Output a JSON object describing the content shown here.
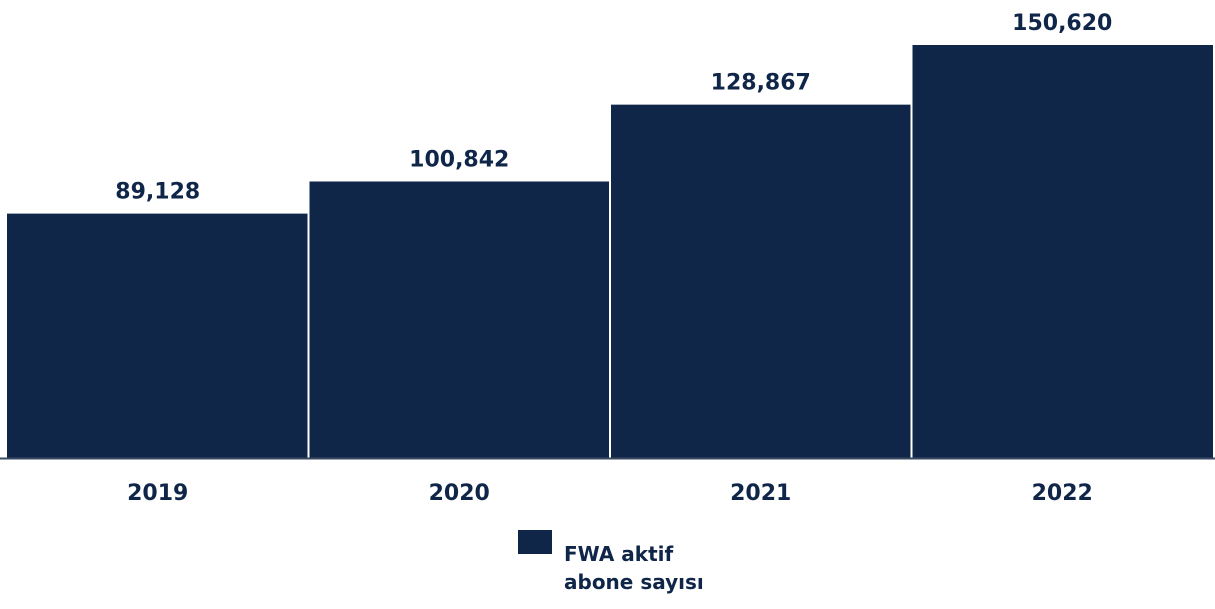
{
  "chart_data": {
    "type": "bar",
    "categories": [
      "2019",
      "2020",
      "2021",
      "2022"
    ],
    "series": [
      {
        "name": "FWA aktif abone sayısı",
        "values": [
          89128,
          100842,
          128867,
          150620
        ],
        "labels": [
          "89,128",
          "100,842",
          "128,867",
          "150,620"
        ]
      }
    ],
    "title": "",
    "xlabel": "",
    "ylabel": "",
    "ylim": [
      0,
      150620
    ],
    "grid": false,
    "legend_position": "bottom-center"
  },
  "colors": {
    "bar": "#0f2649",
    "text": "#0f2649",
    "axis": "#3a4a63",
    "background": "#ffffff"
  }
}
